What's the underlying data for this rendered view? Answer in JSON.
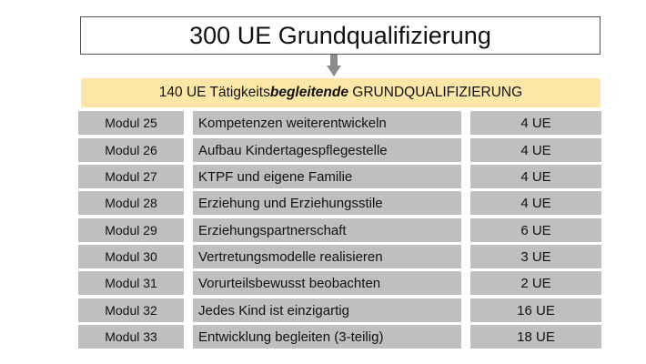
{
  "header": {
    "title": "300 UE Grundqualifizierung"
  },
  "subtitle": {
    "prefix": "140 UE Tätigkeits",
    "emphasis": "begleitende",
    "suffix": " GRUNDQUALIFIZIERUNG"
  },
  "colors": {
    "band": "#fce7a6",
    "cell": "#bfbfbf",
    "arrow": "#8c8c8c"
  },
  "modules": [
    {
      "modul": "Modul 25",
      "title": "Kompetenzen weiterentwickeln",
      "ue": "4 UE"
    },
    {
      "modul": "Modul 26",
      "title": "Aufbau Kindertagespflegestelle",
      "ue": "4 UE"
    },
    {
      "modul": "Modul 27",
      "title": "KTPF und eigene Familie",
      "ue": "4 UE"
    },
    {
      "modul": "Modul 28",
      "title": "Erziehung und Erziehungsstile",
      "ue": "4 UE"
    },
    {
      "modul": "Modul 29",
      "title": "Erziehungspartnerschaft",
      "ue": "6 UE"
    },
    {
      "modul": "Modul 30",
      "title": "Vertretungsmodelle realisieren",
      "ue": "3 UE"
    },
    {
      "modul": "Modul 31",
      "title": "Vorurteilsbewusst beobachten",
      "ue": "2 UE"
    },
    {
      "modul": "Modul 32",
      "title": "Jedes Kind ist einzigartig",
      "ue": "16 UE"
    },
    {
      "modul": "Modul 33",
      "title": "Entwicklung begleiten (3-teilig)",
      "ue": "18 UE"
    }
  ]
}
